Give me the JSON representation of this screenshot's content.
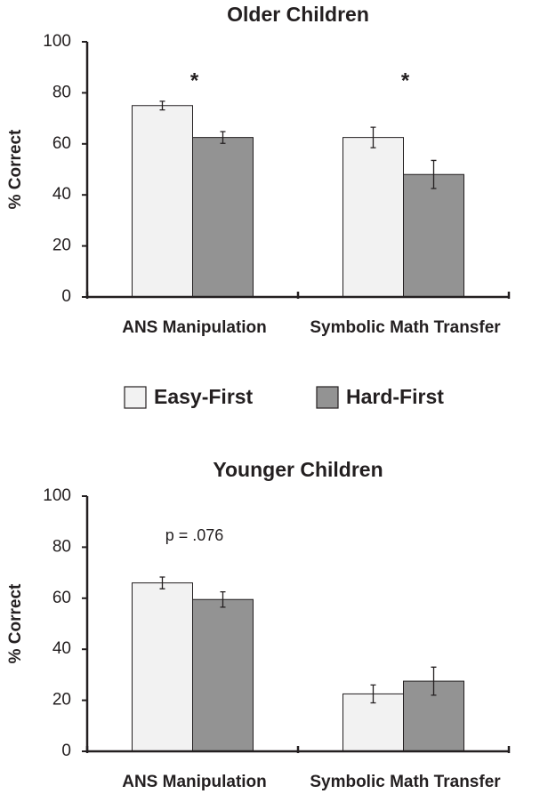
{
  "chart_data": [
    {
      "type": "bar",
      "title": "Older Children",
      "y_label": "% Correct",
      "categories": [
        "ANS Manipulation",
        "Symbolic Math Transfer"
      ],
      "series": [
        {
          "name": "Easy-First",
          "color": "#f2f2f2",
          "values": [
            75,
            62.5
          ],
          "errors": [
            1.7,
            4
          ]
        },
        {
          "name": "Hard-First",
          "color": "#939393",
          "values": [
            62.5,
            48
          ],
          "errors": [
            2.3,
            5.5
          ]
        }
      ],
      "annotations": [
        {
          "text": "*",
          "category": "ANS Manipulation"
        },
        {
          "text": "*",
          "category": "Symbolic Math Transfer"
        }
      ],
      "ylim": [
        0,
        100
      ],
      "yticks": [
        0,
        20,
        40,
        60,
        80,
        100
      ],
      "grid": false
    },
    {
      "type": "bar",
      "title": "Younger Children",
      "y_label": "% Correct",
      "categories": [
        "ANS Manipulation",
        "Symbolic Math Transfer"
      ],
      "series": [
        {
          "color": "#f2f2f2",
          "values": [
            66,
            22.5
          ],
          "errors": [
            2.3,
            3.5
          ]
        },
        {
          "color": "#939393",
          "values": [
            59.5,
            27.5
          ],
          "errors": [
            3,
            5.5
          ]
        }
      ],
      "annotations": [
        {
          "text": "p = .076",
          "category": "ANS Manipulation"
        }
      ],
      "ylim": [
        0,
        100
      ],
      "yticks": [
        0,
        20,
        40,
        60,
        80,
        100
      ],
      "grid": false
    }
  ]
}
